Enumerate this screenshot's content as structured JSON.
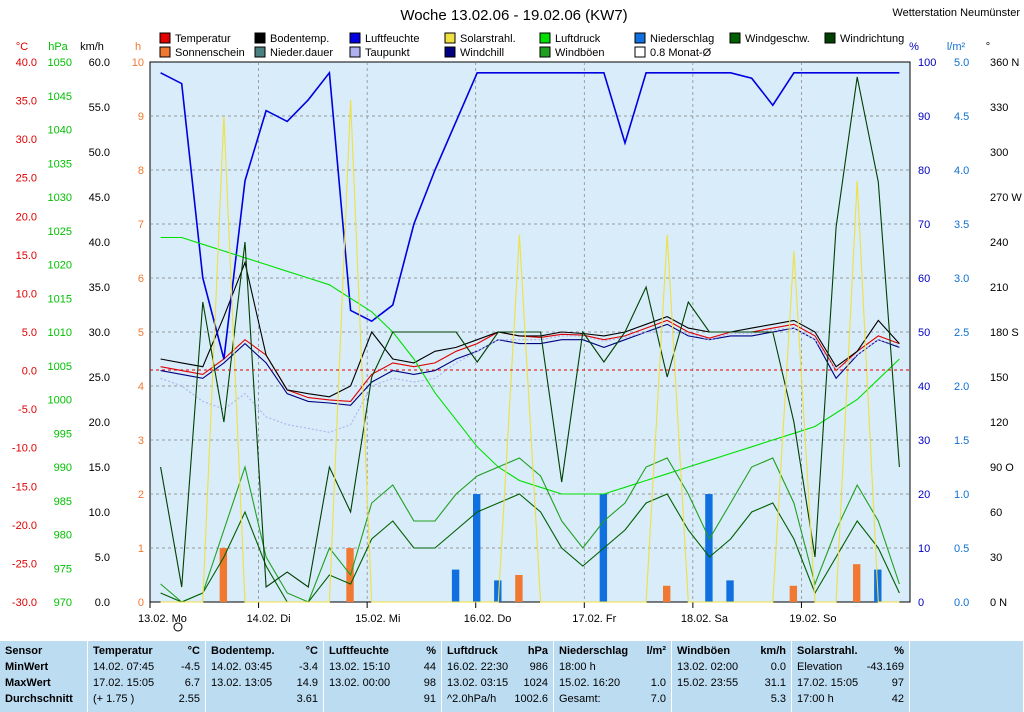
{
  "title": "Woche 13.02.06 - 19.02.06 (KW7)",
  "station": "Wetterstation Neumünster",
  "legend": [
    {
      "label": "Temperatur",
      "color": "#e00000"
    },
    {
      "label": "Sonnenschein",
      "color": "#f07830"
    },
    {
      "label": "Bodentemp.",
      "color": "#000000"
    },
    {
      "label": "Nieder.dauer",
      "color": "#4a8080"
    },
    {
      "label": "Luftfeuchte",
      "color": "#0000e0"
    },
    {
      "label": "Taupunkt",
      "color": "#b0b0f0"
    },
    {
      "label": "Solarstrahl.",
      "color": "#f0e040"
    },
    {
      "label": "Windchill",
      "color": "#000080"
    },
    {
      "label": "Luftdruck",
      "color": "#00e000"
    },
    {
      "label": "Windböen",
      "color": "#20a020"
    },
    {
      "label": "Niederschlag",
      "color": "#1070e0"
    },
    {
      "label": "0.8 Monat-Ø",
      "color": "#ffffff"
    },
    {
      "label": "Windgeschw.",
      "color": "#006000"
    },
    {
      "label": "Windrichtung",
      "color": "#004000"
    }
  ],
  "axes": {
    "temp": {
      "unit": "°C",
      "color": "#e00000",
      "ticks": [
        "40.0",
        "35.0",
        "30.0",
        "25.0",
        "20.0",
        "15.0",
        "10.0",
        "5.0",
        "0.0",
        "-5.0",
        "-10.0",
        "-15.0",
        "-20.0",
        "-25.0",
        "-30.0"
      ]
    },
    "hpa": {
      "unit": "hPa",
      "color": "#00c000",
      "ticks": [
        "1050",
        "1045",
        "1040",
        "1035",
        "1030",
        "1025",
        "1020",
        "1015",
        "1010",
        "1005",
        "1000",
        "995",
        "990",
        "985",
        "980",
        "975",
        "970"
      ]
    },
    "kmh": {
      "unit": "km/h",
      "color": "#000000",
      "ticks": [
        "60.0",
        "55.0",
        "50.0",
        "45.0",
        "40.0",
        "35.0",
        "30.0",
        "25.0",
        "20.0",
        "15.0",
        "10.0",
        "5.0",
        "0.0"
      ]
    },
    "hours": {
      "unit": "h",
      "color": "#f07830",
      "ticks": [
        "10",
        "9",
        "8",
        "7",
        "6",
        "5",
        "4",
        "3",
        "2",
        "1",
        "0"
      ]
    },
    "pct": {
      "unit": "%",
      "color": "#0000c0",
      "ticks": [
        "100",
        "90",
        "80",
        "70",
        "60",
        "50",
        "40",
        "30",
        "20",
        "10",
        "0"
      ]
    },
    "lm2": {
      "unit": "l/m²",
      "color": "#1070d0",
      "ticks": [
        "5.0",
        "4.5",
        "4.0",
        "3.5",
        "3.0",
        "2.5",
        "2.0",
        "1.5",
        "1.0",
        "0.5",
        "0.0"
      ]
    },
    "deg": {
      "unit": "°",
      "color": "#000000",
      "ticks": [
        "360 N",
        "330",
        "300",
        "270 W",
        "240",
        "210",
        "180 S",
        "150",
        "120",
        "90 O",
        "60",
        "30",
        "0 N"
      ]
    }
  },
  "xlabels": [
    "13.02.  Mo",
    "14.02.  Di",
    "15.02.  Mi",
    "16.02.  Do",
    "17.02.  Fr",
    "18.02.  Sa",
    "19.02.  So"
  ],
  "chart_data": {
    "type": "line",
    "title": "Woche 13.02.06 - 19.02.06 (KW7)",
    "x_range": [
      "13.02.06 00:00",
      "20.02.06 00:00"
    ],
    "x_hours_per_point": 6,
    "series": [
      {
        "name": "Temperatur",
        "axis": "°C",
        "values": [
          0.5,
          0.0,
          -0.5,
          1.5,
          4.0,
          2.0,
          -2.5,
          -3.5,
          -3.8,
          -4.0,
          -0.5,
          1.0,
          0.5,
          1.0,
          2.5,
          3.5,
          5.0,
          4.5,
          4.3,
          4.7,
          4.6,
          4.0,
          4.5,
          5.5,
          6.5,
          5.0,
          4.2,
          5.0,
          5.0,
          5.5,
          6.0,
          4.5,
          0.0,
          2.5,
          4.5,
          3.5
        ]
      },
      {
        "name": "Bodentemp.",
        "axis": "°C",
        "values": [
          1.5,
          1.0,
          0.5,
          7.0,
          14.0,
          2.0,
          -2.5,
          -3.0,
          -3.4,
          -2.0,
          5.0,
          1.5,
          1.0,
          2.5,
          3.0,
          4.0,
          5.0,
          4.5,
          4.5,
          5.0,
          4.8,
          4.5,
          5.0,
          6.0,
          7.0,
          5.5,
          5.0,
          5.0,
          5.5,
          6.0,
          6.5,
          5.0,
          0.5,
          2.5,
          6.5,
          3.5
        ]
      },
      {
        "name": "Windchill",
        "axis": "°C",
        "values": [
          0.0,
          -0.5,
          -1.0,
          1.0,
          3.5,
          1.0,
          -3.0,
          -4.0,
          -4.2,
          -4.5,
          -1.5,
          0.0,
          -0.5,
          0.0,
          1.5,
          2.5,
          4.0,
          3.5,
          3.5,
          4.0,
          4.0,
          3.0,
          4.0,
          5.0,
          6.0,
          4.5,
          4.0,
          4.5,
          4.5,
          5.0,
          5.5,
          4.0,
          -1.0,
          2.0,
          4.0,
          3.0
        ]
      },
      {
        "name": "Taupunkt",
        "axis": "°C",
        "values": [
          -1.0,
          -2.0,
          -4.0,
          -5.0,
          -3.0,
          -6.0,
          -7.0,
          -7.5,
          -8.0,
          -7.0,
          -2.0,
          -1.0,
          -1.5,
          -1.0,
          1.0,
          2.5,
          4.0,
          4.0,
          4.0,
          4.5,
          4.5,
          3.8,
          4.3,
          5.0,
          5.0,
          4.8,
          4.0,
          4.8,
          4.8,
          5.3,
          5.5,
          4.0,
          0.0,
          2.0,
          4.0,
          3.2
        ]
      },
      {
        "name": "Luftfeuchte",
        "axis": "%",
        "values": [
          98,
          96,
          60,
          45,
          78,
          91,
          89,
          93,
          98,
          54,
          52,
          55,
          70,
          80,
          89,
          98,
          98,
          98,
          98,
          98,
          98,
          98,
          85,
          98,
          98,
          98,
          98,
          98,
          97,
          92,
          98,
          98,
          98,
          98,
          98,
          98
        ]
      },
      {
        "name": "Luftdruck",
        "axis": "hPa",
        "values": [
          1024,
          1024,
          1023,
          1022,
          1021,
          1020,
          1019,
          1018,
          1017,
          1015,
          1013,
          1010,
          1006,
          1001,
          997,
          993,
          990,
          988,
          987,
          986,
          986,
          986,
          987,
          988,
          989,
          990,
          991,
          992,
          993,
          994,
          995,
          996,
          998,
          1000,
          1003,
          1006
        ]
      },
      {
        "name": "Windböen",
        "axis": "km/h",
        "values": [
          2,
          0,
          1,
          8,
          15,
          5,
          1,
          0,
          6,
          3,
          11,
          13,
          9,
          9,
          12,
          14,
          15,
          16,
          14,
          9,
          6,
          9,
          11,
          15,
          16,
          12,
          7,
          11,
          15,
          16,
          11,
          2,
          8,
          13,
          9,
          2
        ]
      },
      {
        "name": "Windgeschw.",
        "axis": "km/h",
        "values": [
          1,
          0,
          1,
          5,
          10,
          4,
          0,
          0,
          3,
          2,
          7,
          9,
          6,
          6,
          8,
          10,
          11,
          12,
          10,
          6,
          4,
          6,
          8,
          11,
          12,
          8,
          5,
          7,
          10,
          11,
          7,
          1,
          5,
          9,
          6,
          1
        ]
      },
      {
        "name": "Windrichtung",
        "axis": "°",
        "values": [
          90,
          10,
          200,
          120,
          240,
          10,
          20,
          10,
          90,
          60,
          150,
          180,
          180,
          180,
          180,
          160,
          180,
          180,
          180,
          80,
          180,
          160,
          180,
          210,
          150,
          200,
          180,
          180,
          180,
          180,
          120,
          30,
          250,
          350,
          280,
          90
        ]
      },
      {
        "name": "Solarstrahl.",
        "axis": "%",
        "values": [
          0,
          0,
          0,
          90,
          0,
          0,
          0,
          0,
          0,
          93,
          0,
          0,
          0,
          0,
          0,
          0,
          0,
          68,
          0,
          0,
          0,
          0,
          0,
          0,
          68,
          0,
          0,
          0,
          0,
          0,
          65,
          0,
          0,
          78,
          0,
          0
        ]
      },
      {
        "name": "Sonnenschein",
        "axis": "h",
        "values": [
          0,
          0,
          0,
          1.0,
          0,
          0,
          0,
          0,
          0,
          1.0,
          0,
          0,
          0,
          0,
          0,
          0,
          0,
          0.5,
          0,
          0,
          0,
          0,
          0,
          0,
          0.3,
          0,
          0,
          0,
          0,
          0,
          0.3,
          0,
          0,
          0.7,
          0,
          0
        ]
      },
      {
        "name": "Niederschlag",
        "axis": "l/m²",
        "values": [
          0,
          0,
          0,
          0,
          0,
          0,
          0,
          0,
          0,
          0,
          0,
          0,
          0,
          0,
          0.3,
          1.0,
          0.2,
          0,
          0,
          0,
          0,
          1.0,
          0,
          0,
          0,
          0,
          1.0,
          0.2,
          0,
          0,
          0,
          0,
          0,
          0,
          0.3,
          0
        ]
      }
    ]
  },
  "stats": [
    {
      "header": "Sensor",
      "unit": "",
      "rows": [
        {
          "a": "MinWert",
          "b": ""
        },
        {
          "a": "MaxWert",
          "b": ""
        },
        {
          "a": "Durchschnitt",
          "b": ""
        }
      ]
    },
    {
      "header": "Temperatur",
      "unit": "°C",
      "rows": [
        {
          "a": "14.02.  07:45",
          "b": "-4.5"
        },
        {
          "a": "17.02.  15:05",
          "b": "6.7"
        },
        {
          "a": "(+ 1.75 )",
          "b": "2.55"
        }
      ]
    },
    {
      "header": "Bodentemp.",
      "unit": "°C",
      "rows": [
        {
          "a": "14.02.  03:45",
          "b": "-3.4"
        },
        {
          "a": "13.02.  13:05",
          "b": "14.9"
        },
        {
          "a": "",
          "b": "3.61"
        }
      ]
    },
    {
      "header": "Luftfeuchte",
      "unit": "%",
      "rows": [
        {
          "a": "13.02.  15:10",
          "b": "44"
        },
        {
          "a": "13.02.  00:00",
          "b": "98"
        },
        {
          "a": "",
          "b": "91"
        }
      ]
    },
    {
      "header": "Luftdruck",
      "unit": "hPa",
      "rows": [
        {
          "a": "16.02.  22:30",
          "b": "986"
        },
        {
          "a": "13.02.  03:15",
          "b": "1024"
        },
        {
          "a": "^2.0hPa/h",
          "b": "1002.6"
        }
      ]
    },
    {
      "header": "Niederschlag",
      "unit": "l/m²",
      "rows": [
        {
          "a": "18:00 h",
          "b": ""
        },
        {
          "a": "15.02.  16:20",
          "b": "1.0"
        },
        {
          "a": "Gesamt:",
          "b": "7.0"
        }
      ]
    },
    {
      "header": "Windböen",
      "unit": "km/h",
      "rows": [
        {
          "a": "13.02.  02:00",
          "b": "0.0"
        },
        {
          "a": "15.02.  23:55",
          "b": "31.1"
        },
        {
          "a": "",
          "b": "5.3"
        }
      ]
    },
    {
      "header": "Solarstrahl.",
      "unit": "%",
      "rows": [
        {
          "a": "Elevation",
          "b": "-43.169"
        },
        {
          "a": "17.02.  15:05",
          "b": "97"
        },
        {
          "a": "17:00 h",
          "b": "42"
        }
      ]
    }
  ]
}
